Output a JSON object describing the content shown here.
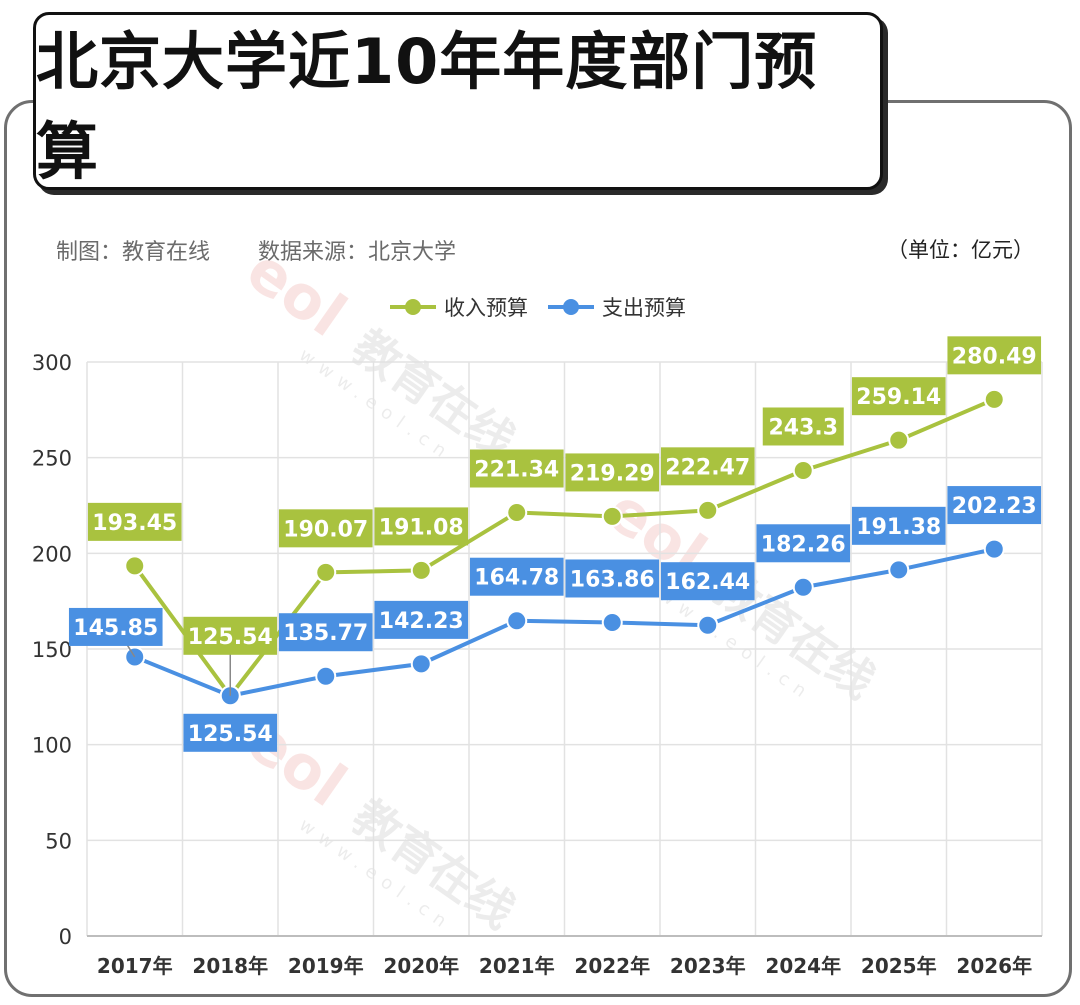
{
  "title": "北京大学近10年年度部门预算",
  "credit": "制图：教育在线",
  "source": "数据来源：北京大学",
  "unit": "（单位：亿元）",
  "watermark": "教育在线",
  "watermark_url": "www.eol.cn",
  "chart_data": {
    "type": "line",
    "categories": [
      "2017年",
      "2018年",
      "2019年",
      "2020年",
      "2021年",
      "2022年",
      "2023年",
      "2024年",
      "2025年",
      "2026年"
    ],
    "series": [
      {
        "name": "收入预算",
        "color": "#a9c23f",
        "values": [
          193.45,
          125.54,
          190.07,
          191.08,
          221.34,
          219.29,
          222.47,
          243.3,
          259.14,
          280.49
        ]
      },
      {
        "name": "支出预算",
        "color": "#4a90e2",
        "values": [
          145.85,
          125.54,
          135.77,
          142.23,
          164.78,
          163.86,
          162.44,
          182.26,
          191.38,
          202.23
        ]
      }
    ],
    "ylim": [
      0,
      300
    ],
    "yticks": [
      0,
      50,
      100,
      150,
      200,
      250,
      300
    ],
    "grid": true,
    "legend_position": "top-center"
  }
}
